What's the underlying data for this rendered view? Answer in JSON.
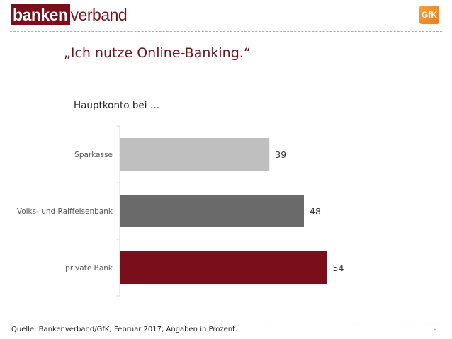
{
  "header": {
    "logo_part1": "banken",
    "logo_part2": "verband",
    "gfk_logo": "GfK"
  },
  "title": "„Ich nutze Online-Banking.“",
  "subtitle": "Hauptkonto bei …",
  "chart_data": {
    "type": "bar",
    "orientation": "horizontal",
    "categories": [
      "Sparkasse",
      "Volks- und Raiffeisenbank",
      "private Bank"
    ],
    "values": [
      39,
      48,
      54
    ],
    "colors": [
      "#bfbfbf",
      "#6a6a6a",
      "#7a0e1b"
    ],
    "xlim": [
      0,
      72
    ],
    "grid": false,
    "legend": "none"
  },
  "footer": {
    "source": "Quelle: Bankenverband/GfK; Februar 2017; Angaben in Prozent.",
    "page_number": "8"
  }
}
